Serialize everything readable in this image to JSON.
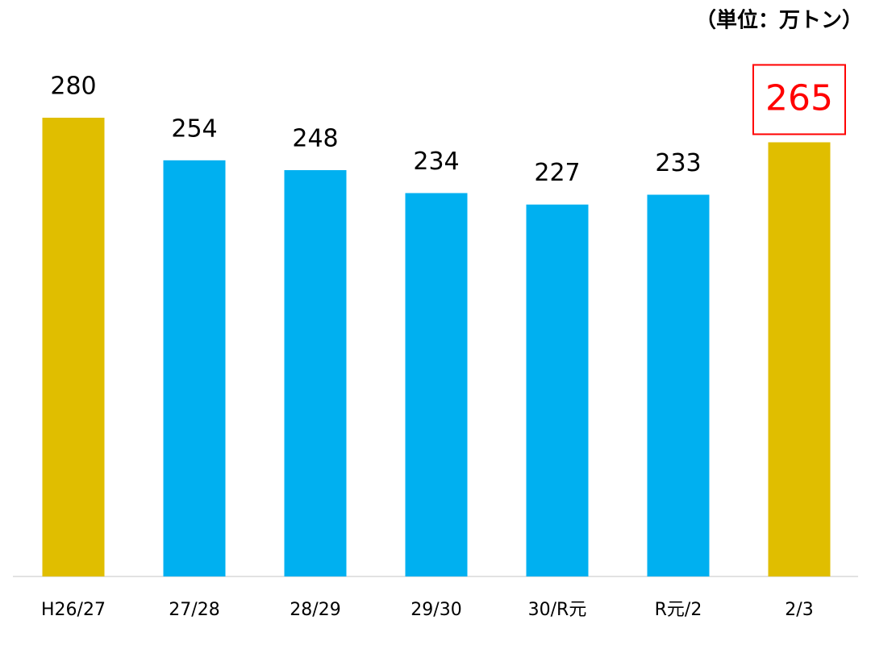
{
  "chart_data": {
    "type": "bar",
    "unit": "（単位：万トン）",
    "categories": [
      "H26/27",
      "27/28",
      "28/29",
      "29/30",
      "30/R元",
      "R元/2",
      "2/3"
    ],
    "values": [
      280,
      254,
      248,
      234,
      227,
      233,
      265
    ],
    "colors": [
      "#e0be00",
      "#00b0f0",
      "#00b0f0",
      "#00b0f0",
      "#00b0f0",
      "#00b0f0",
      "#e0be00"
    ],
    "highlight": [
      false,
      false,
      false,
      false,
      false,
      false,
      true
    ],
    "highlight_color": "#ff0000",
    "ylim": [
      0,
      280
    ]
  }
}
